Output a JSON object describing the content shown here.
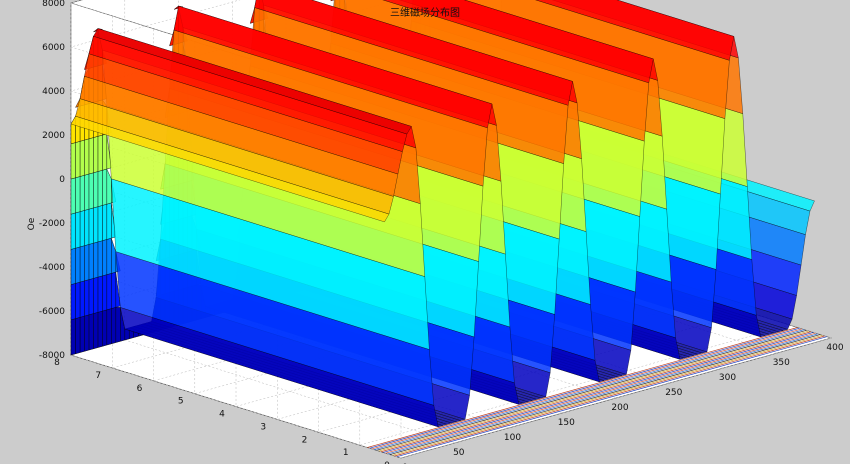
{
  "chart_data": {
    "type": "surface3d",
    "title": "三维磁场分布图",
    "xlabel": "",
    "ylabel": "",
    "zlabel": "Oe",
    "xlim": [
      0,
      400
    ],
    "ylim": [
      0,
      8
    ],
    "zlim": [
      -8000,
      8000
    ],
    "x_ticks": [
      0,
      50,
      100,
      150,
      200,
      250,
      300,
      350,
      400
    ],
    "y_ticks": [
      0,
      1,
      2,
      3,
      4,
      5,
      6,
      7,
      8
    ],
    "z_ticks": [
      -8000,
      -6000,
      -4000,
      -2000,
      0,
      2000,
      4000,
      6000,
      8000
    ],
    "grid": true,
    "colormap": "jet",
    "series": [
      {
        "x": [
          0,
          25,
          50,
          75,
          100,
          125,
          150,
          175,
          200,
          225,
          250,
          275,
          300,
          325,
          350,
          375,
          400
        ],
        "z": [
          2500,
          6500,
          -7500,
          -7500,
          6500,
          -7500,
          -7500,
          6500,
          -7500,
          -7500,
          6500,
          -7500,
          -7500,
          6500,
          -7500,
          -7500,
          -2000
        ]
      }
    ],
    "note_profile": "B_z along x: repeated high (~+6500 Oe) and low (~-7500 Oe) stripes, constant along y from 0 to 8"
  }
}
